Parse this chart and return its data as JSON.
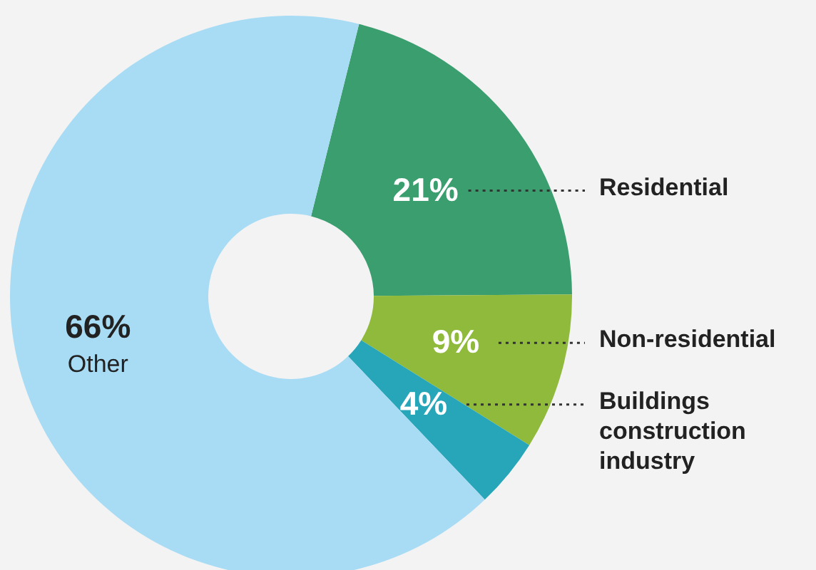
{
  "chart_data": {
    "type": "donut",
    "categories": [
      "Residential",
      "Non-residential",
      "Buildings construction industry",
      "Other"
    ],
    "values": [
      21,
      9,
      4,
      66
    ],
    "colors": [
      "#3a9e6f",
      "#8fba3c",
      "#26a6b8",
      "#a8dcf5"
    ],
    "value_labels": [
      "21%",
      "9%",
      "4%",
      "66%"
    ]
  }
}
